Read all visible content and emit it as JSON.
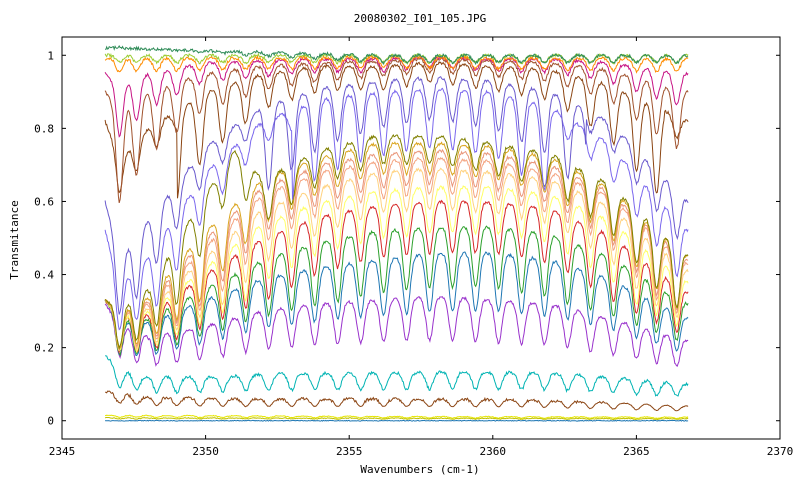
{
  "chart_data": {
    "type": "line",
    "title": "20080302_I01_105.JPG",
    "xlabel": "Wavenumbers (cm-1)",
    "ylabel": "Transmitance",
    "xlim": [
      2345,
      2370
    ],
    "ylim": [
      -0.05,
      1.05
    ],
    "x_ticks": [
      2345,
      2350,
      2355,
      2360,
      2365,
      2370
    ],
    "y_ticks": [
      0,
      0.2,
      0.4,
      0.6,
      0.8,
      1
    ],
    "x_tick_labels": [
      "2345",
      "2350",
      "2355",
      "2360",
      "2365",
      "2370"
    ],
    "y_tick_labels": [
      "0",
      "0.2",
      "0.4",
      "0.6",
      "0.8",
      "1"
    ],
    "x_range_data": [
      2346.5,
      2366.8
    ],
    "line_dips_x": [
      2347.0,
      2347.6,
      2348.3,
      2349.0,
      2349.8,
      2350.6,
      2351.4,
      2352.2,
      2353.0,
      2353.8,
      2354.6,
      2355.4,
      2356.2,
      2357.0,
      2357.8,
      2358.6,
      2359.4,
      2360.2,
      2361.0,
      2361.8,
      2362.6,
      2363.4,
      2364.2,
      2365.0,
      2365.7,
      2366.4
    ],
    "series": [
      {
        "color": "#00b3b3",
        "values": [
          [
            2346.5,
            0.18
          ],
          [
            2347.0,
            0.14
          ],
          [
            2348,
            0.12
          ],
          [
            2350,
            0.12
          ],
          [
            2353,
            0.13
          ],
          [
            2356,
            0.13
          ],
          [
            2359,
            0.135
          ],
          [
            2362,
            0.13
          ],
          [
            2364,
            0.12
          ],
          [
            2366.8,
            0.1
          ]
        ]
      },
      {
        "color": "#8b4513",
        "values": [
          [
            2346.5,
            0.08
          ],
          [
            2348,
            0.065
          ],
          [
            2351,
            0.06
          ],
          [
            2356,
            0.06
          ],
          [
            2361,
            0.058
          ],
          [
            2364,
            0.05
          ],
          [
            2366.8,
            0.04
          ]
        ]
      },
      {
        "color": "#e6e600",
        "values": [
          [
            2346.5,
            0.015
          ],
          [
            2356,
            0.012
          ],
          [
            2366.8,
            0.01
          ]
        ]
      },
      {
        "color": "#c0c000",
        "values": [
          [
            2346.5,
            0.008
          ],
          [
            2356,
            0.007
          ],
          [
            2366.8,
            0.006
          ]
        ]
      },
      {
        "color": "#1f77b4",
        "values": [
          [
            2346.5,
            0.0
          ],
          [
            2356,
            0.0
          ],
          [
            2366.8,
            0.0
          ]
        ]
      },
      {
        "color": "#9932cc",
        "values": [
          [
            2346.5,
            0.32
          ],
          [
            2347.0,
            0.27
          ],
          [
            2348,
            0.23
          ],
          [
            2350,
            0.26
          ],
          [
            2352,
            0.3
          ],
          [
            2354,
            0.32
          ],
          [
            2356,
            0.33
          ],
          [
            2358,
            0.34
          ],
          [
            2360,
            0.33
          ],
          [
            2362,
            0.32
          ],
          [
            2364,
            0.28
          ],
          [
            2366.8,
            0.22
          ]
        ]
      },
      {
        "color": "#1f77b4",
        "values": [
          [
            2346.5,
            0.33
          ],
          [
            2347.0,
            0.28
          ],
          [
            2348,
            0.27
          ],
          [
            2350,
            0.33
          ],
          [
            2352,
            0.39
          ],
          [
            2354,
            0.42
          ],
          [
            2356,
            0.44
          ],
          [
            2358,
            0.46
          ],
          [
            2360,
            0.46
          ],
          [
            2362,
            0.44
          ],
          [
            2364,
            0.39
          ],
          [
            2366.8,
            0.28
          ]
        ]
      },
      {
        "color": "#2ca02c",
        "values": [
          [
            2346.5,
            0.33
          ],
          [
            2347.0,
            0.28
          ],
          [
            2348,
            0.28
          ],
          [
            2350,
            0.36
          ],
          [
            2352,
            0.44
          ],
          [
            2354,
            0.49
          ],
          [
            2356,
            0.52
          ],
          [
            2358,
            0.53
          ],
          [
            2360,
            0.53
          ],
          [
            2362,
            0.51
          ],
          [
            2364,
            0.45
          ],
          [
            2366.8,
            0.32
          ]
        ]
      },
      {
        "color": "#d62728",
        "values": [
          [
            2346.5,
            0.33
          ],
          [
            2347.0,
            0.29
          ],
          [
            2348,
            0.29
          ],
          [
            2350,
            0.4
          ],
          [
            2352,
            0.5
          ],
          [
            2354,
            0.56
          ],
          [
            2356,
            0.59
          ],
          [
            2358,
            0.6
          ],
          [
            2360,
            0.6
          ],
          [
            2362,
            0.58
          ],
          [
            2364,
            0.51
          ],
          [
            2366.8,
            0.35
          ]
        ]
      },
      {
        "color": "#ffff66",
        "values": [
          [
            2346.5,
            0.33
          ],
          [
            2347.0,
            0.29
          ],
          [
            2348,
            0.3
          ],
          [
            2350,
            0.42
          ],
          [
            2352,
            0.54
          ],
          [
            2354,
            0.6
          ],
          [
            2356,
            0.63
          ],
          [
            2358,
            0.64
          ],
          [
            2360,
            0.64
          ],
          [
            2362,
            0.62
          ],
          [
            2364,
            0.55
          ],
          [
            2366.8,
            0.38
          ]
        ]
      },
      {
        "color": "#ffd27f",
        "values": [
          [
            2346.5,
            0.33
          ],
          [
            2347.0,
            0.3
          ],
          [
            2348,
            0.31
          ],
          [
            2350,
            0.45
          ],
          [
            2352,
            0.58
          ],
          [
            2354,
            0.64
          ],
          [
            2356,
            0.68
          ],
          [
            2358,
            0.69
          ],
          [
            2360,
            0.68
          ],
          [
            2362,
            0.66
          ],
          [
            2364,
            0.59
          ],
          [
            2366.8,
            0.41
          ]
        ]
      },
      {
        "color": "#f4a582",
        "values": [
          [
            2346.5,
            0.33
          ],
          [
            2347.0,
            0.3
          ],
          [
            2348,
            0.32
          ],
          [
            2350,
            0.48
          ],
          [
            2352,
            0.62
          ],
          [
            2354,
            0.68
          ],
          [
            2356,
            0.71
          ],
          [
            2358,
            0.72
          ],
          [
            2360,
            0.71
          ],
          [
            2362,
            0.68
          ],
          [
            2364,
            0.62
          ],
          [
            2366.8,
            0.43
          ]
        ]
      },
      {
        "color": "#e9967a",
        "values": [
          [
            2346.5,
            0.33
          ],
          [
            2347.0,
            0.3
          ],
          [
            2348,
            0.33
          ],
          [
            2350,
            0.5
          ],
          [
            2352,
            0.64
          ],
          [
            2354,
            0.7
          ],
          [
            2356,
            0.73
          ],
          [
            2358,
            0.74
          ],
          [
            2360,
            0.73
          ],
          [
            2362,
            0.7
          ],
          [
            2364,
            0.63
          ],
          [
            2366.8,
            0.44
          ]
        ]
      },
      {
        "color": "#daa520",
        "values": [
          [
            2346.5,
            0.33
          ],
          [
            2347.0,
            0.3
          ],
          [
            2348,
            0.34
          ],
          [
            2350,
            0.52
          ],
          [
            2352,
            0.66
          ],
          [
            2354,
            0.72
          ],
          [
            2356,
            0.76
          ],
          [
            2358,
            0.76
          ],
          [
            2360,
            0.75
          ],
          [
            2362,
            0.72
          ],
          [
            2364,
            0.64
          ],
          [
            2366.8,
            0.45
          ]
        ]
      },
      {
        "color": "#808000",
        "values": [
          [
            2346.5,
            0.33
          ],
          [
            2347.0,
            0.31
          ],
          [
            2348,
            0.36
          ],
          [
            2350,
            0.62
          ],
          [
            2351,
            0.74
          ],
          [
            2352,
            0.66
          ],
          [
            2354,
            0.74
          ],
          [
            2356,
            0.78
          ],
          [
            2358,
            0.78
          ],
          [
            2360,
            0.76
          ],
          [
            2362,
            0.73
          ],
          [
            2364,
            0.65
          ],
          [
            2366.8,
            0.45
          ]
        ]
      },
      {
        "color": "#7b68ee",
        "values": [
          [
            2346.5,
            0.52
          ],
          [
            2347.0,
            0.38
          ],
          [
            2348,
            0.45
          ],
          [
            2350,
            0.68
          ],
          [
            2352,
            0.82
          ],
          [
            2354,
            0.88
          ],
          [
            2356,
            0.9
          ],
          [
            2358,
            0.91
          ],
          [
            2360,
            0.9
          ],
          [
            2362,
            0.86
          ],
          [
            2364,
            0.76
          ],
          [
            2366.8,
            0.52
          ]
        ]
      },
      {
        "color": "#6a5acd",
        "values": [
          [
            2346.5,
            0.6
          ],
          [
            2347.0,
            0.45
          ],
          [
            2348,
            0.55
          ],
          [
            2350,
            0.75
          ],
          [
            2352,
            0.86
          ],
          [
            2354,
            0.91
          ],
          [
            2356,
            0.93
          ],
          [
            2358,
            0.94
          ],
          [
            2360,
            0.93
          ],
          [
            2362,
            0.9
          ],
          [
            2364,
            0.82
          ],
          [
            2366.8,
            0.6
          ]
        ]
      },
      {
        "color": "#8b4513",
        "values": [
          [
            2346.5,
            0.82
          ],
          [
            2347.0,
            0.72
          ],
          [
            2348,
            0.8
          ],
          [
            2350,
            0.9
          ],
          [
            2352,
            0.95
          ],
          [
            2354,
            0.97
          ],
          [
            2356,
            0.97
          ],
          [
            2358,
            0.98
          ],
          [
            2360,
            0.97
          ],
          [
            2362,
            0.96
          ],
          [
            2364,
            0.92
          ],
          [
            2366.8,
            0.82
          ]
        ]
      },
      {
        "color": "#a0522d",
        "values": [
          [
            2346.5,
            0.9
          ],
          [
            2347.0,
            0.85
          ],
          [
            2348,
            0.9
          ],
          [
            2350,
            0.95
          ],
          [
            2352,
            0.97
          ],
          [
            2354,
            0.98
          ],
          [
            2356,
            0.985
          ],
          [
            2358,
            0.99
          ],
          [
            2360,
            0.985
          ],
          [
            2362,
            0.98
          ],
          [
            2364,
            0.96
          ],
          [
            2366.8,
            0.9
          ]
        ]
      },
      {
        "color": "#c71585",
        "values": [
          [
            2346.5,
            0.95
          ],
          [
            2347.0,
            0.92
          ],
          [
            2348,
            0.95
          ],
          [
            2350,
            0.98
          ],
          [
            2352,
            0.985
          ],
          [
            2354,
            0.99
          ],
          [
            2356,
            0.99
          ],
          [
            2358,
            0.995
          ],
          [
            2360,
            0.99
          ],
          [
            2362,
            0.99
          ],
          [
            2364,
            0.98
          ],
          [
            2366.8,
            0.95
          ]
        ]
      },
      {
        "color": "#9acd32",
        "values": [
          [
            2346.5,
            1.0
          ],
          [
            2356,
            1.0
          ],
          [
            2366.8,
            1.0
          ]
        ]
      },
      {
        "color": "#ff8c00",
        "values": [
          [
            2346.5,
            0.99
          ],
          [
            2356,
            0.995
          ],
          [
            2366.8,
            0.99
          ]
        ]
      },
      {
        "color": "#2e8b57",
        "values": [
          [
            2346.5,
            1.02
          ],
          [
            2356,
            1.0
          ],
          [
            2366.8,
            1.0
          ]
        ]
      }
    ]
  }
}
